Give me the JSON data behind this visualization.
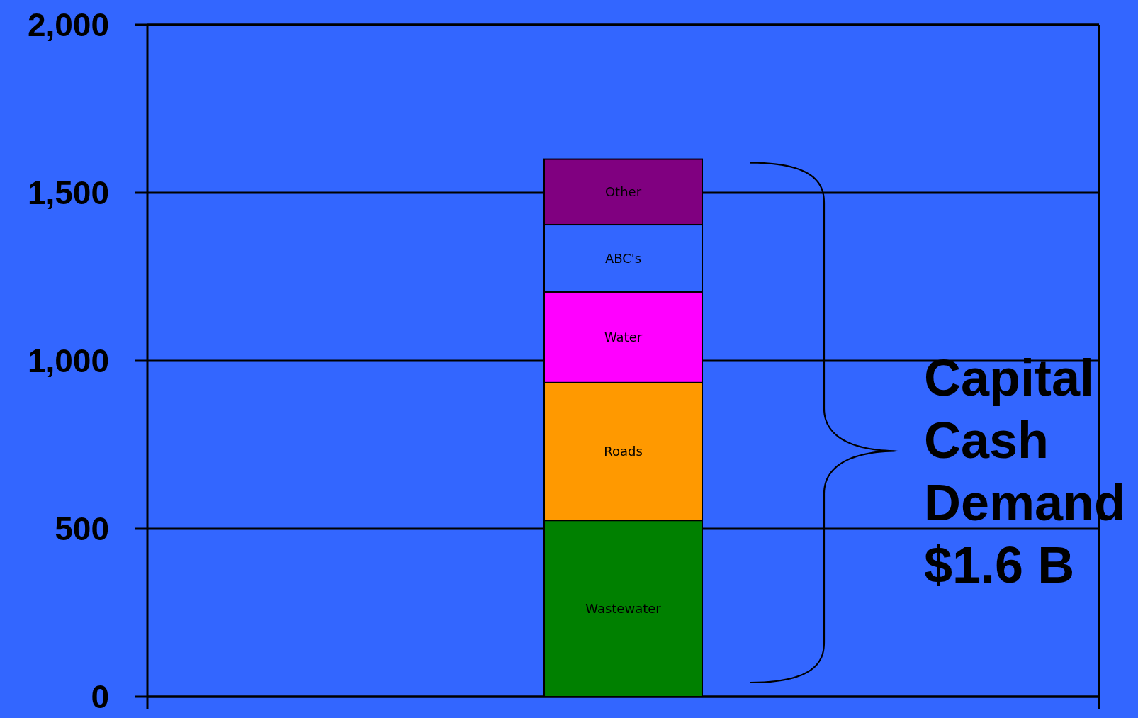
{
  "chart_data": {
    "type": "bar",
    "stacked": true,
    "categories": [
      null
    ],
    "series": [
      {
        "name": "Wastewater",
        "color": "#008000",
        "values": [
          525
        ]
      },
      {
        "name": "Roads",
        "color": "#ff9900",
        "values": [
          410
        ]
      },
      {
        "name": "Water",
        "color": "#ff00ff",
        "values": [
          270
        ]
      },
      {
        "name": "ABC's",
        "color": "#3366ff",
        "values": [
          200
        ]
      },
      {
        "name": "Other",
        "color": "#800080",
        "values": [
          195
        ]
      }
    ],
    "ylim": [
      0,
      2000
    ],
    "yticks": [
      0,
      500,
      {
        "value": 1000,
        "label": "1,000"
      },
      {
        "value": 1500,
        "label": "1,500"
      },
      {
        "value": 2000,
        "label": "2,000"
      }
    ],
    "grid": "y",
    "annotations": [
      "Capital Cash Demand $1.6 B"
    ]
  }
}
